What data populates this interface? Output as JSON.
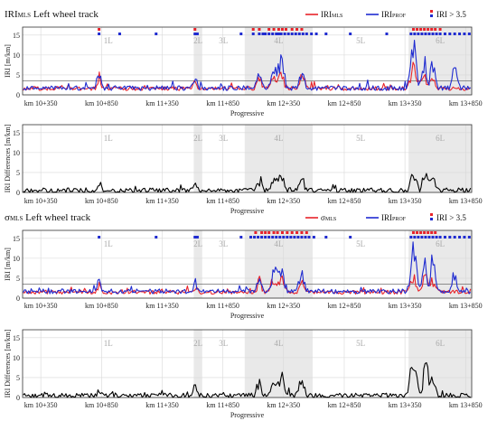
{
  "chart_data": [
    {
      "type": "line",
      "title_main": "IRI",
      "title_sub": "MLS",
      "title_rest": " Left wheel track",
      "xlabel": "Progressive",
      "ylabel": "IRI [m/km]",
      "xlim": [
        10200,
        13900
      ],
      "ylim": [
        0,
        17
      ],
      "yticks": [
        "0",
        "5",
        "10",
        "15"
      ],
      "threshold": 3.5,
      "series": [
        {
          "name_main": "IRI",
          "name_sub": "MLS",
          "color": "#e8232a",
          "base": 1.6,
          "amp": [
            [
              10830,
              2.6,
              18
            ],
            [
              11620,
              2.0,
              18
            ],
            [
              12150,
              2.6,
              25
            ],
            [
              12260,
              3.0,
              25
            ],
            [
              12330,
              4.0,
              30
            ],
            [
              12500,
              2.6,
              25
            ],
            [
              13420,
              5.5,
              30
            ],
            [
              13500,
              3.5,
              25
            ],
            [
              13580,
              2.8,
              25
            ]
          ],
          "noise": 0.5
        },
        {
          "name_main": "IRI",
          "name_sub": "PROF",
          "color": "#1f2bd0",
          "base": 1.7,
          "amp": [
            [
              10830,
              3.3,
              18
            ],
            [
              11620,
              2.4,
              18
            ],
            [
              12150,
              3.2,
              25
            ],
            [
              12270,
              5.5,
              25
            ],
            [
              12330,
              6.5,
              30
            ],
            [
              12500,
              4.0,
              25
            ],
            [
              13420,
              10.6,
              30
            ],
            [
              13510,
              6.5,
              25
            ],
            [
              13580,
              8.0,
              22
            ],
            [
              13760,
              4.5,
              25
            ]
          ],
          "noise": 0.6
        }
      ],
      "legend_flag": "IRI > 3.5",
      "markers": {
        "red": [
          10830,
          11620,
          12100,
          12150,
          12230,
          12270,
          12310,
          12340,
          12370,
          12420,
          12460,
          12500,
          13420,
          13450,
          13480,
          13510,
          13540,
          13570,
          13600,
          13640
        ],
        "blue": [
          10830,
          11000,
          11300,
          11620,
          11640,
          12000,
          12100,
          12150,
          12180,
          12200,
          12230,
          12260,
          12290,
          12310,
          12330,
          12360,
          12390,
          12420,
          12450,
          12480,
          12510,
          12540,
          12580,
          12620,
          12700,
          12900,
          13200,
          13400,
          13430,
          13460,
          13490,
          13520,
          13550,
          13580,
          13610,
          13640,
          13680,
          13720,
          13760,
          13800,
          13840,
          13880
        ]
      }
    },
    {
      "type": "line",
      "xlabel": "Progressive",
      "ylabel": "IRI Differences [m/km]",
      "xlim": [
        10200,
        13900
      ],
      "ylim": [
        0,
        17
      ],
      "yticks": [
        "0",
        "5",
        "10",
        "15"
      ],
      "series": [
        {
          "color": "#000000",
          "base": 0.5,
          "amp": [
            [
              10830,
              1.5,
              18
            ],
            [
              11620,
              1.7,
              18
            ],
            [
              12150,
              2.5,
              25
            ],
            [
              12270,
              3.5,
              25
            ],
            [
              12330,
              4.0,
              30
            ],
            [
              12500,
              3.2,
              25
            ],
            [
              13420,
              4.5,
              30
            ],
            [
              13520,
              6.5,
              25
            ],
            [
              13580,
              4.8,
              25
            ]
          ],
          "noise": 0.6
        }
      ]
    },
    {
      "type": "line",
      "title_main": "σ",
      "title_sub": "MLS",
      "title_rest": " Left wheel track",
      "xlabel": "Progressive",
      "ylabel": "IRI [m/km]",
      "xlim": [
        10200,
        13900
      ],
      "ylim": [
        0,
        17
      ],
      "yticks": [
        "0",
        "5",
        "10",
        "15"
      ],
      "threshold": 3.5,
      "series": [
        {
          "name_main": "σ",
          "name_sub": "MLS",
          "color": "#e8232a",
          "base": 1.5,
          "amp": [
            [
              10830,
              1.8,
              18
            ],
            [
              11620,
              1.5,
              18
            ],
            [
              12150,
              2.5,
              25
            ],
            [
              12270,
              3.0,
              25
            ],
            [
              12330,
              3.8,
              30
            ],
            [
              12500,
              2.5,
              25
            ],
            [
              13420,
              4.2,
              30
            ],
            [
              13520,
              4.8,
              25
            ],
            [
              13580,
              2.8,
              25
            ]
          ],
          "noise": 0.5
        },
        {
          "name_main": "IRI",
          "name_sub": "PROF",
          "color": "#1f2bd0",
          "base": 1.7,
          "amp": [
            [
              10830,
              3.3,
              18
            ],
            [
              11620,
              2.4,
              18
            ],
            [
              12150,
              3.2,
              25
            ],
            [
              12270,
              5.5,
              25
            ],
            [
              12330,
              6.5,
              30
            ],
            [
              12500,
              4.0,
              25
            ],
            [
              13420,
              10.6,
              30
            ],
            [
              13510,
              6.5,
              25
            ],
            [
              13580,
              8.0,
              22
            ],
            [
              13760,
              4.5,
              25
            ]
          ],
          "noise": 0.6
        }
      ],
      "legend_flag": "IRI > 3.5",
      "markers": {
        "red": [
          12120,
          12170,
          12200,
          12230,
          12270,
          12300,
          12340,
          12380,
          12420,
          12460,
          12500,
          12540,
          13420,
          13450,
          13480,
          13510,
          13540,
          13570,
          13600
        ],
        "blue": [
          10830,
          11300,
          11620,
          11640,
          12000,
          12080,
          12110,
          12140,
          12170,
          12200,
          12230,
          12260,
          12290,
          12320,
          12350,
          12380,
          12410,
          12440,
          12470,
          12500,
          12530,
          12560,
          12600,
          12700,
          12900,
          13400,
          13430,
          13460,
          13490,
          13520,
          13550,
          13580,
          13610,
          13640,
          13680,
          13720,
          13760,
          13800,
          13840,
          13880
        ]
      }
    },
    {
      "type": "line",
      "xlabel": "Progressive",
      "ylabel": "IRI Differences [m/km]",
      "xlim": [
        10200,
        13900
      ],
      "ylim": [
        0,
        17
      ],
      "yticks": [
        "0",
        "5",
        "10",
        "15"
      ],
      "series": [
        {
          "color": "#000000",
          "base": 0.5,
          "amp": [
            [
              10830,
              1.5,
              18
            ],
            [
              11620,
              2.8,
              18
            ],
            [
              12150,
              3.0,
              25
            ],
            [
              12270,
              4.0,
              25
            ],
            [
              12330,
              5.0,
              30
            ],
            [
              12500,
              4.0,
              25
            ],
            [
              13420,
              10.0,
              30
            ],
            [
              13520,
              7.5,
              25
            ],
            [
              13580,
              5.0,
              25
            ]
          ],
          "noise": 0.6
        }
      ]
    }
  ],
  "xticks": [
    {
      "v": 10350,
      "label": "km 10+350"
    },
    {
      "v": 10850,
      "label": "km 10+850"
    },
    {
      "v": 11350,
      "label": "km 11+350"
    },
    {
      "v": 11850,
      "label": "km 11+850"
    },
    {
      "v": 12350,
      "label": "km 12+350"
    },
    {
      "v": 12850,
      "label": "km 12+850"
    },
    {
      "v": 13350,
      "label": "km 13+350"
    },
    {
      "v": 13850,
      "label": "km 13+850"
    }
  ],
  "segments": [
    {
      "label": "1L",
      "start": 10200,
      "end": 11610,
      "shaded": false
    },
    {
      "label": "2L",
      "start": 11610,
      "end": 11680,
      "shaded": true
    },
    {
      "label": "3L",
      "start": 11680,
      "end": 12030,
      "shaded": false
    },
    {
      "label": "4L",
      "start": 12030,
      "end": 12590,
      "shaded": true
    },
    {
      "label": "5L",
      "start": 12590,
      "end": 13380,
      "shaded": false
    },
    {
      "label": "6L",
      "start": 13380,
      "end": 13900,
      "shaded": true
    }
  ],
  "colors": {
    "red": "#e8232a",
    "blue": "#1f2bd0",
    "black": "#000000",
    "shade": "#e9e9e9",
    "grid": "#d8d8d8"
  }
}
